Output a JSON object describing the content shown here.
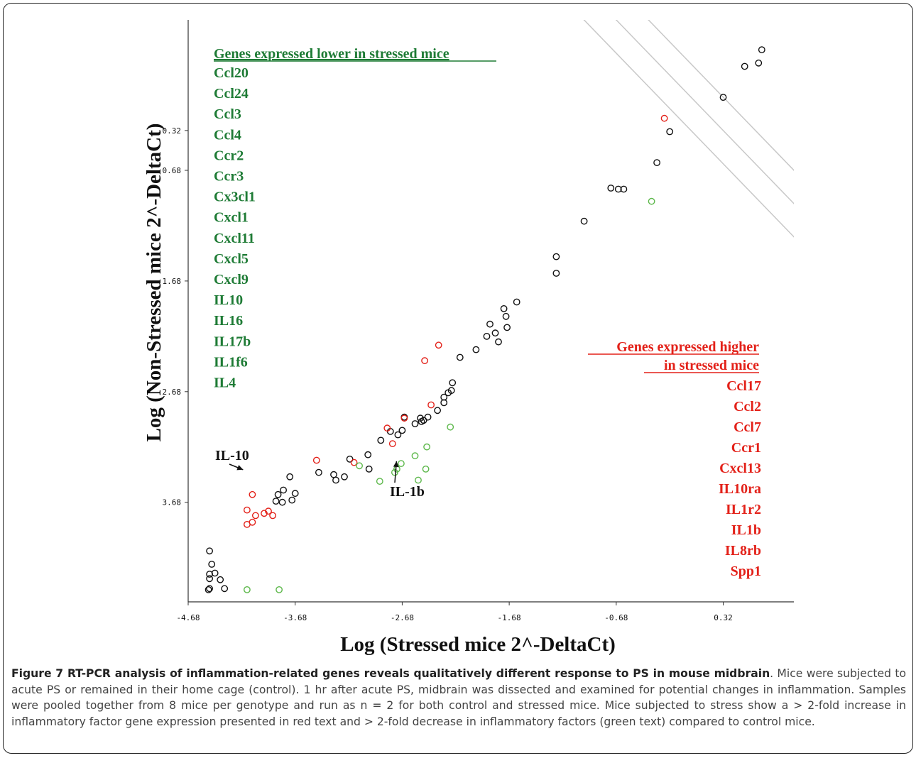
{
  "chart_data": {
    "type": "scatter",
    "xlabel": "Log (Stressed mice 2^-DeltaCt)",
    "ylabel": "Log (Non-Stressed mice 2^-DeltaCt)",
    "xticks": [
      "-4.68",
      "-3.68",
      "-2.68",
      "-1.68",
      "-0.68",
      "0.32"
    ],
    "yticks": [
      "0.32",
      "0.68",
      "1.68",
      "2.68",
      "3.68"
    ],
    "xlim": [
      -4.68,
      0.98
    ],
    "ylim": [
      4.58,
      -0.68
    ],
    "grid": false,
    "diagonal_lines": true,
    "green_list_title": "Genes expressed lower in stressed mice",
    "green_genes": [
      "Ccl20",
      "Ccl24",
      "Ccl3",
      "Ccl4",
      "Ccr2",
      "Ccr3",
      "Cx3cl1",
      "Cxcl1",
      "Cxcl11",
      "Cxcl5",
      "Cxcl9",
      "IL10",
      "IL16",
      "IL17b",
      "IL1f6",
      "IL4"
    ],
    "red_list_title_line1": "Genes expressed higher",
    "red_list_title_line2": "in stressed mice",
    "red_genes": [
      "Ccl17",
      "Ccl2",
      "Ccl7",
      "Ccr1",
      "Cxcl13",
      "IL10ra",
      "IL1r2",
      "IL1b",
      "IL8rb",
      "Spp1"
    ],
    "annotations": [
      {
        "label": "IL-10",
        "point": [
          -4.13,
          3.4
        ]
      },
      {
        "label": "IL-1b",
        "point": [
          -2.73,
          3.27
        ]
      }
    ],
    "series": [
      {
        "color": "#111111",
        "points": [
          [
            0.68,
            -0.41
          ],
          [
            0.52,
            -0.26
          ],
          [
            0.65,
            -0.29
          ],
          [
            0.32,
            0.02
          ],
          [
            -0.18,
            0.33
          ],
          [
            -0.3,
            0.61
          ],
          [
            -0.61,
            0.85
          ],
          [
            -0.66,
            0.85
          ],
          [
            -0.73,
            0.84
          ],
          [
            -0.98,
            1.14
          ],
          [
            -1.24,
            1.46
          ],
          [
            -1.24,
            1.61
          ],
          [
            -1.61,
            1.87
          ],
          [
            -1.73,
            1.93
          ],
          [
            -1.71,
            2.0
          ],
          [
            -1.7,
            2.1
          ],
          [
            -1.81,
            2.15
          ],
          [
            -1.86,
            2.07
          ],
          [
            -1.89,
            2.18
          ],
          [
            -1.78,
            2.23
          ],
          [
            -1.99,
            2.3
          ],
          [
            -2.14,
            2.37
          ],
          [
            -2.21,
            2.6
          ],
          [
            -2.22,
            2.67
          ],
          [
            -2.25,
            2.69
          ],
          [
            -2.29,
            2.73
          ],
          [
            -2.29,
            2.78
          ],
          [
            -2.35,
            2.85
          ],
          [
            -2.44,
            2.91
          ],
          [
            -2.48,
            2.94
          ],
          [
            -2.51,
            2.92
          ],
          [
            -2.56,
            2.97
          ],
          [
            -2.5,
            2.95
          ],
          [
            -2.66,
            2.91
          ],
          [
            -2.68,
            3.03
          ],
          [
            -2.79,
            3.04
          ],
          [
            -2.72,
            3.07
          ],
          [
            -2.88,
            3.12
          ],
          [
            -2.99,
            3.38
          ],
          [
            -3.0,
            3.25
          ],
          [
            -3.17,
            3.29
          ],
          [
            -3.22,
            3.45
          ],
          [
            -3.3,
            3.48
          ],
          [
            -3.32,
            3.43
          ],
          [
            -3.46,
            3.41
          ],
          [
            -3.86,
            3.67
          ],
          [
            -3.8,
            3.68
          ],
          [
            -3.71,
            3.66
          ],
          [
            -3.68,
            3.6
          ],
          [
            -3.79,
            3.57
          ],
          [
            -3.84,
            3.61
          ],
          [
            -3.73,
            3.45
          ],
          [
            -4.48,
            4.12
          ],
          [
            -4.46,
            4.24
          ],
          [
            -4.43,
            4.32
          ],
          [
            -4.38,
            4.38
          ],
          [
            -4.34,
            4.46
          ],
          [
            -4.48,
            4.33
          ],
          [
            -4.48,
            4.37
          ],
          [
            -4.48,
            4.46
          ],
          [
            -4.49,
            4.47
          ]
        ]
      },
      {
        "color": "#e32119",
        "points": [
          [
            -0.23,
            0.21
          ],
          [
            -2.47,
            2.4
          ],
          [
            -2.34,
            2.26
          ],
          [
            -2.41,
            2.8
          ],
          [
            -2.66,
            2.92
          ],
          [
            -2.77,
            3.15
          ],
          [
            -2.82,
            3.01
          ],
          [
            -3.13,
            3.32
          ],
          [
            -3.48,
            3.3
          ],
          [
            -4.13,
            3.75
          ],
          [
            -4.08,
            3.61
          ],
          [
            -4.08,
            3.86
          ],
          [
            -3.89,
            3.8
          ],
          [
            -3.93,
            3.76
          ],
          [
            -3.97,
            3.78
          ],
          [
            -4.05,
            3.8
          ],
          [
            -4.13,
            3.88
          ]
        ]
      },
      {
        "color": "#5db84b",
        "points": [
          [
            -0.35,
            0.96
          ],
          [
            -2.23,
            3.0
          ],
          [
            -2.45,
            3.18
          ],
          [
            -2.56,
            3.26
          ],
          [
            -2.46,
            3.38
          ],
          [
            -2.53,
            3.48
          ],
          [
            -2.69,
            3.33
          ],
          [
            -2.73,
            3.38
          ],
          [
            -2.75,
            3.41
          ],
          [
            -2.89,
            3.49
          ],
          [
            -3.08,
            3.35
          ],
          [
            -4.13,
            4.47
          ],
          [
            -3.83,
            4.47
          ]
        ]
      }
    ]
  },
  "caption": {
    "figure_label": "Figure 7 RT-PCR analysis of inflammation-related genes reveals qualitatively different response to PS in mouse midbrain",
    "text": ". Mice were subjected to acute PS or remained in their home cage (control). 1 hr after acute PS, midbrain was dissected and examined for potential changes in inflammation. Samples were pooled together from 8 mice per genotype and run as n = 2 for both control and stressed mice. Mice subjected to stress show a > 2-fold increase in inflammatory factor gene expression presented in red text and > 2-fold decrease in inflammatory factors (green text) compared to control mice."
  }
}
